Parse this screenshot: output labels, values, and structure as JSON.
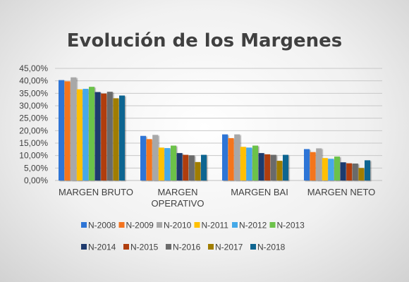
{
  "chart_data": {
    "type": "bar",
    "title": "Evolución de los Margenes",
    "xlabel": "",
    "ylabel": "",
    "categories": [
      [
        "MARGEN BRUTO"
      ],
      [
        "MARGEN",
        "OPERATIVO"
      ],
      [
        "MARGEN BAI"
      ],
      [
        "MARGEN NETO"
      ]
    ],
    "ylim": [
      0,
      45
    ],
    "yticks": [
      "0,00%",
      "5,00%",
      "10,00%",
      "15,00%",
      "20,00%",
      "25,00%",
      "30,00%",
      "35,00%",
      "40,00%",
      "45,00%"
    ],
    "grid": true,
    "legend_position": "bottom",
    "series": [
      {
        "name": "N-2008",
        "color": "#2e75d6",
        "values": [
          40.3,
          17.9,
          18.5,
          12.6
        ]
      },
      {
        "name": "N-2009",
        "color": "#f4741f",
        "values": [
          39.8,
          16.6,
          17.0,
          11.4
        ]
      },
      {
        "name": "N-2010",
        "color": "#a8a8a8",
        "values": [
          41.4,
          18.3,
          18.5,
          12.9
        ]
      },
      {
        "name": "N-2011",
        "color": "#ffc000",
        "values": [
          36.6,
          13.2,
          13.5,
          9.0
        ]
      },
      {
        "name": "N-2012",
        "color": "#45a9e8",
        "values": [
          36.8,
          13.0,
          13.2,
          8.7
        ]
      },
      {
        "name": "N-2013",
        "color": "#6cc24a",
        "values": [
          37.6,
          14.0,
          14.0,
          9.6
        ]
      },
      {
        "name": "N-2014",
        "color": "#1f3b6e",
        "values": [
          35.5,
          11.0,
          11.0,
          7.3
        ]
      },
      {
        "name": "N-2015",
        "color": "#b03e0e",
        "values": [
          34.9,
          10.3,
          10.5,
          6.9
        ]
      },
      {
        "name": "N-2016",
        "color": "#6b6b6b",
        "values": [
          35.6,
          10.1,
          10.3,
          6.8
        ]
      },
      {
        "name": "N-2017",
        "color": "#a07d00",
        "values": [
          33.0,
          7.4,
          7.9,
          5.0
        ]
      },
      {
        "name": "N-2018",
        "color": "#0e6591",
        "values": [
          34.1,
          10.3,
          10.3,
          8.1
        ]
      }
    ]
  }
}
